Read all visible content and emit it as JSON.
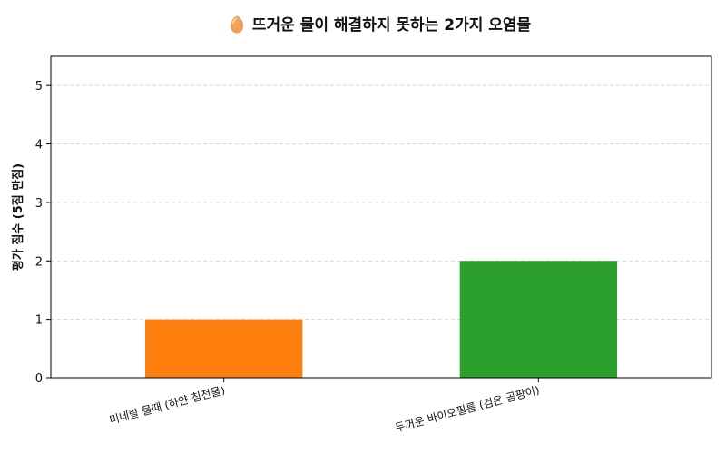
{
  "chart_data": {
    "type": "bar",
    "title": "🥚 뜨거운 물이 해결하지 못하는 2가지 오염물",
    "xlabel": "",
    "ylabel": "평가 점수 (5점 만점)",
    "categories": [
      "미네랄 물때 (하얀 침전물)",
      "두꺼운 바이오필름 (검은 곰팡이)"
    ],
    "values": [
      1,
      2
    ],
    "colors": [
      "#ff7f0e",
      "#2ca02c"
    ],
    "ylim": [
      0,
      5.5
    ],
    "yticks": [
      0,
      1,
      2,
      3,
      4,
      5
    ],
    "grid": true,
    "legend": "none"
  }
}
